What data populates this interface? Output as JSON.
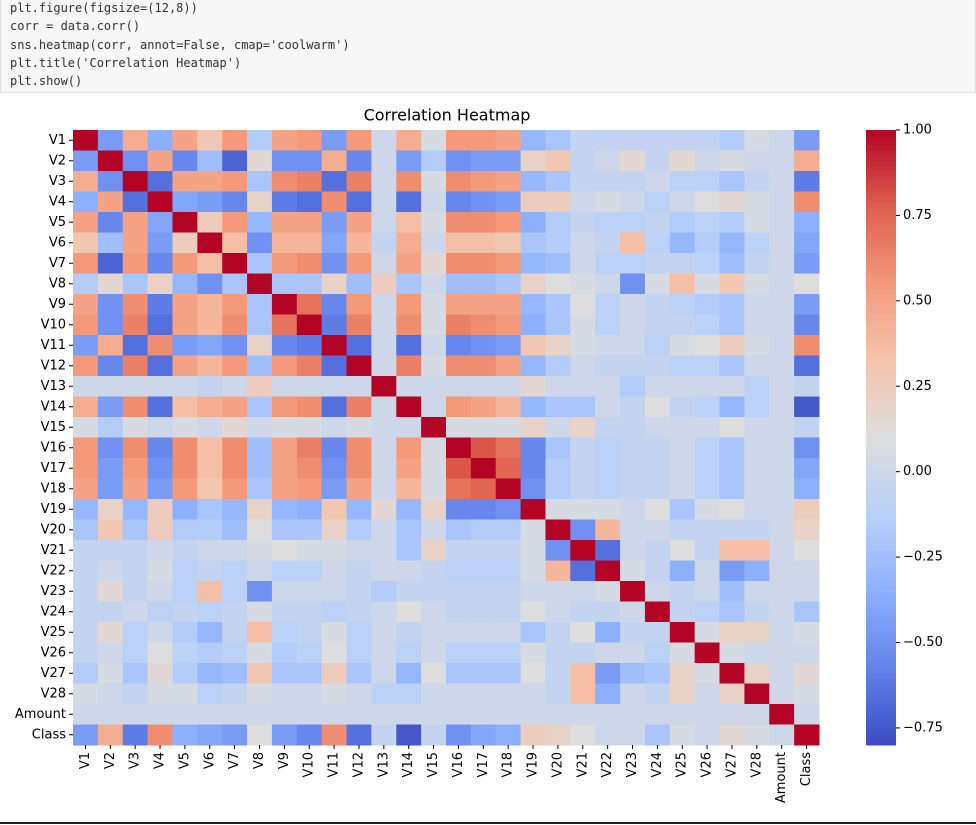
{
  "code": [
    "plt.figure(figsize=(12,8))",
    "corr = data.corr()",
    "sns.heatmap(corr, annot=False, cmap='coolwarm')",
    "plt.title('Correlation Heatmap')",
    "plt.show()"
  ],
  "chart_data": {
    "type": "heatmap",
    "title": "Correlation Heatmap",
    "cmap": "coolwarm",
    "categories": [
      "V1",
      "V2",
      "V3",
      "V4",
      "V5",
      "V6",
      "V7",
      "V8",
      "V9",
      "V10",
      "V11",
      "V12",
      "V13",
      "V14",
      "V15",
      "V16",
      "V17",
      "V18",
      "V19",
      "V20",
      "V21",
      "V22",
      "V23",
      "V24",
      "V25",
      "V26",
      "V27",
      "V28",
      "Amount",
      "Class"
    ],
    "matrix": [
      [
        1,
        -0.45,
        0.45,
        -0.35,
        0.5,
        0.3,
        0.55,
        -0.15,
        0.5,
        0.55,
        -0.45,
        0.55,
        0,
        0.45,
        0.05,
        0.55,
        0.55,
        0.5,
        -0.3,
        -0.2,
        -0.05,
        -0.05,
        -0.05,
        -0.05,
        -0.05,
        -0.05,
        -0.15,
        0.05,
        0,
        -0.45
      ],
      [
        -0.45,
        1,
        -0.5,
        0.5,
        -0.55,
        -0.25,
        -0.7,
        0.15,
        -0.5,
        -0.5,
        0.45,
        -0.55,
        0,
        -0.45,
        -0.15,
        -0.5,
        -0.45,
        -0.45,
        0.2,
        0.3,
        -0.05,
        0,
        0.15,
        -0.05,
        0.15,
        0,
        0.05,
        0,
        0,
        0.45
      ],
      [
        0.45,
        -0.5,
        1,
        -0.65,
        0.5,
        0.5,
        0.55,
        -0.2,
        0.6,
        0.65,
        -0.65,
        0.65,
        0,
        0.6,
        0.05,
        0.6,
        0.55,
        0.5,
        -0.3,
        -0.2,
        -0.05,
        -0.05,
        -0.05,
        0,
        -0.1,
        -0.1,
        -0.2,
        -0.05,
        0,
        -0.6
      ],
      [
        -0.35,
        0.5,
        -0.65,
        1,
        -0.4,
        -0.45,
        -0.55,
        0.2,
        -0.6,
        -0.65,
        0.6,
        -0.65,
        0,
        -0.65,
        0,
        -0.55,
        -0.5,
        -0.45,
        0.25,
        0.25,
        0,
        0.05,
        0,
        -0.1,
        0,
        0.1,
        0.15,
        0.05,
        0,
        0.6
      ],
      [
        0.5,
        -0.55,
        0.5,
        -0.4,
        1,
        0.25,
        0.55,
        -0.3,
        0.5,
        0.5,
        -0.45,
        0.5,
        0,
        0.35,
        0.05,
        0.6,
        0.6,
        0.55,
        -0.35,
        -0.15,
        -0.05,
        -0.1,
        -0.1,
        -0.05,
        -0.15,
        -0.1,
        -0.15,
        0.05,
        0,
        -0.35
      ],
      [
        0.3,
        -0.25,
        0.5,
        -0.45,
        0.25,
        1,
        0.35,
        -0.5,
        0.4,
        0.4,
        -0.4,
        0.4,
        -0.05,
        0.45,
        0,
        0.35,
        0.35,
        0.3,
        -0.2,
        -0.15,
        0,
        -0.05,
        0.35,
        -0.1,
        -0.3,
        -0.15,
        -0.3,
        -0.1,
        0,
        -0.4
      ],
      [
        0.55,
        -0.7,
        0.55,
        -0.55,
        0.55,
        0.35,
        1,
        -0.2,
        0.55,
        0.6,
        -0.5,
        0.55,
        0,
        0.5,
        0.15,
        0.6,
        0.6,
        0.55,
        -0.3,
        -0.25,
        0,
        -0.1,
        -0.1,
        -0.05,
        -0.05,
        -0.1,
        -0.25,
        -0.05,
        0,
        -0.45
      ],
      [
        -0.15,
        0.15,
        -0.2,
        0.2,
        -0.3,
        -0.5,
        -0.2,
        1,
        -0.2,
        -0.2,
        0.2,
        -0.25,
        0.25,
        -0.2,
        0,
        -0.25,
        -0.25,
        -0.2,
        0.2,
        0.1,
        0.05,
        0,
        -0.5,
        0.05,
        0.35,
        0.05,
        0.3,
        0.05,
        0,
        0.1
      ],
      [
        0.5,
        -0.5,
        0.6,
        -0.6,
        0.5,
        0.4,
        0.55,
        -0.2,
        1,
        0.7,
        -0.55,
        0.55,
        0,
        0.55,
        0.05,
        0.5,
        0.5,
        0.5,
        -0.3,
        -0.2,
        0.1,
        -0.1,
        0,
        -0.05,
        -0.1,
        -0.15,
        -0.2,
        0,
        0,
        -0.45
      ],
      [
        0.55,
        -0.5,
        0.65,
        -0.65,
        0.5,
        0.4,
        0.6,
        -0.2,
        0.7,
        1,
        -0.6,
        0.65,
        0,
        0.6,
        0.05,
        0.65,
        0.6,
        0.55,
        -0.35,
        -0.2,
        0.05,
        -0.1,
        0,
        -0.05,
        -0.05,
        -0.1,
        -0.2,
        0,
        0,
        -0.55
      ],
      [
        -0.45,
        0.45,
        -0.65,
        0.6,
        -0.45,
        -0.4,
        -0.5,
        0.2,
        -0.55,
        -0.6,
        1,
        -0.65,
        0,
        -0.65,
        0,
        -0.55,
        -0.5,
        -0.45,
        0.3,
        0.2,
        0.05,
        0,
        0,
        -0.1,
        0.05,
        0.1,
        0.25,
        0.05,
        0,
        0.6
      ],
      [
        0.55,
        -0.55,
        0.65,
        -0.65,
        0.5,
        0.4,
        0.55,
        -0.25,
        0.55,
        0.65,
        -0.65,
        1,
        0,
        0.65,
        0.05,
        0.6,
        0.6,
        0.5,
        -0.3,
        -0.15,
        0,
        -0.05,
        -0.05,
        -0.05,
        -0.1,
        -0.1,
        -0.2,
        0,
        0,
        -0.65
      ],
      [
        0,
        0,
        0,
        0,
        0,
        -0.05,
        0,
        0.25,
        0,
        0,
        0,
        0,
        1,
        0,
        0,
        0,
        0,
        0,
        0.15,
        0,
        0,
        0,
        -0.15,
        0,
        0,
        0,
        0,
        -0.1,
        0,
        -0.05
      ],
      [
        0.45,
        -0.45,
        0.6,
        -0.65,
        0.35,
        0.45,
        0.5,
        -0.2,
        0.55,
        0.6,
        -0.65,
        0.65,
        0,
        1,
        0,
        0.55,
        0.5,
        0.4,
        -0.3,
        -0.2,
        -0.2,
        0,
        -0.05,
        0.1,
        -0.05,
        -0.1,
        -0.3,
        -0.1,
        0,
        -0.75
      ],
      [
        0.05,
        -0.15,
        0.05,
        0,
        0.05,
        0,
        0.15,
        0,
        0.05,
        0.05,
        0,
        0.05,
        0,
        0,
        1,
        0.05,
        0.05,
        0.05,
        0.2,
        0,
        0.2,
        -0.05,
        -0.05,
        0,
        0,
        0,
        0.1,
        0,
        0,
        -0.05
      ],
      [
        0.55,
        -0.5,
        0.6,
        -0.55,
        0.6,
        0.35,
        0.6,
        -0.25,
        0.5,
        0.65,
        -0.55,
        0.6,
        0,
        0.55,
        0.05,
        1,
        0.8,
        0.7,
        -0.55,
        -0.2,
        -0.05,
        -0.1,
        -0.05,
        -0.05,
        0,
        -0.1,
        -0.2,
        0,
        0,
        -0.5
      ],
      [
        0.55,
        -0.45,
        0.55,
        -0.5,
        0.6,
        0.35,
        0.6,
        -0.25,
        0.5,
        0.6,
        -0.5,
        0.6,
        0,
        0.5,
        0.05,
        0.8,
        1,
        0.75,
        -0.55,
        -0.15,
        -0.05,
        -0.1,
        -0.05,
        -0.05,
        0,
        -0.1,
        -0.2,
        0,
        0,
        -0.4
      ],
      [
        0.5,
        -0.45,
        0.5,
        -0.45,
        0.55,
        0.3,
        0.55,
        -0.2,
        0.5,
        0.55,
        -0.45,
        0.5,
        0,
        0.4,
        0.05,
        0.7,
        0.75,
        1,
        -0.5,
        -0.15,
        -0.05,
        -0.1,
        -0.05,
        -0.05,
        0,
        -0.1,
        -0.2,
        0,
        0,
        -0.35
      ],
      [
        -0.3,
        0.2,
        -0.3,
        0.25,
        -0.35,
        -0.2,
        -0.3,
        0.2,
        -0.3,
        -0.35,
        0.3,
        -0.3,
        0.15,
        -0.3,
        0.2,
        -0.55,
        -0.55,
        -0.5,
        1,
        0.05,
        0.05,
        0.05,
        0,
        0.1,
        -0.2,
        0.05,
        0.1,
        0,
        0,
        0.25
      ],
      [
        -0.2,
        0.3,
        -0.2,
        0.25,
        -0.15,
        -0.15,
        -0.25,
        0.1,
        -0.2,
        -0.2,
        0.2,
        -0.15,
        0,
        -0.2,
        0,
        -0.2,
        -0.15,
        -0.15,
        0.05,
        1,
        -0.5,
        0.4,
        0,
        0,
        -0.05,
        -0.05,
        -0.05,
        -0.05,
        0,
        0.2
      ],
      [
        -0.05,
        -0.05,
        -0.05,
        0,
        -0.05,
        0,
        0,
        0.05,
        0.1,
        0.05,
        0.05,
        0,
        0,
        -0.2,
        0.2,
        -0.05,
        -0.05,
        -0.05,
        0.05,
        -0.5,
        1,
        -0.65,
        0,
        -0.05,
        0.1,
        -0.05,
        0.35,
        0.35,
        0,
        0.1
      ],
      [
        -0.05,
        0,
        -0.05,
        0.05,
        -0.1,
        -0.05,
        -0.1,
        0,
        -0.1,
        -0.1,
        0,
        -0.05,
        0,
        0,
        -0.05,
        -0.1,
        -0.1,
        -0.1,
        0.05,
        0.4,
        -0.65,
        1,
        0.05,
        -0.05,
        -0.35,
        0,
        -0.45,
        -0.35,
        0,
        0
      ],
      [
        -0.05,
        0.15,
        -0.05,
        0,
        -0.1,
        0.35,
        -0.1,
        -0.5,
        0,
        0,
        0,
        -0.05,
        -0.15,
        -0.05,
        -0.05,
        -0.05,
        -0.05,
        -0.05,
        0,
        0,
        0,
        0.05,
        1,
        0,
        -0.05,
        0,
        -0.25,
        0,
        0,
        0
      ],
      [
        -0.05,
        -0.05,
        0,
        -0.1,
        -0.05,
        -0.1,
        -0.05,
        0.05,
        -0.05,
        -0.05,
        -0.1,
        -0.05,
        0,
        0.1,
        0,
        -0.05,
        -0.05,
        -0.05,
        0.1,
        0,
        -0.05,
        -0.05,
        0,
        1,
        -0.05,
        -0.1,
        -0.2,
        -0.05,
        0,
        -0.2
      ],
      [
        -0.05,
        0.15,
        -0.1,
        0,
        -0.15,
        -0.3,
        -0.05,
        0.35,
        -0.1,
        -0.05,
        0.05,
        -0.1,
        0,
        -0.05,
        0,
        0,
        0,
        0,
        -0.2,
        -0.05,
        0.1,
        -0.35,
        -0.05,
        -0.05,
        1,
        0.05,
        0.2,
        0.2,
        0,
        0.05
      ],
      [
        -0.05,
        0,
        -0.1,
        0.1,
        -0.1,
        -0.15,
        -0.1,
        0.05,
        -0.15,
        -0.1,
        0.1,
        -0.1,
        0,
        -0.1,
        0,
        -0.1,
        -0.1,
        -0.1,
        0.05,
        -0.05,
        -0.05,
        0,
        0,
        -0.1,
        0.05,
        1,
        0.05,
        0,
        0,
        0
      ],
      [
        -0.15,
        0.05,
        -0.2,
        0.15,
        -0.15,
        -0.3,
        -0.25,
        0.3,
        -0.2,
        -0.2,
        0.25,
        -0.2,
        0,
        -0.3,
        0.1,
        -0.2,
        -0.2,
        -0.2,
        0.1,
        -0.05,
        0.35,
        -0.45,
        -0.25,
        -0.2,
        0.2,
        0.05,
        1,
        0.2,
        0,
        0.15
      ],
      [
        0.05,
        0,
        -0.05,
        0.05,
        0.05,
        -0.1,
        -0.05,
        0.05,
        0,
        0,
        0.05,
        0,
        -0.1,
        -0.1,
        0,
        0,
        0,
        0,
        0,
        -0.05,
        0.35,
        -0.35,
        0,
        -0.05,
        0.2,
        0,
        0.2,
        1,
        0,
        0.05
      ],
      [
        0,
        0,
        0,
        0,
        0,
        0,
        0,
        0,
        0,
        0,
        0,
        0,
        0,
        0,
        0,
        0,
        0,
        0,
        0,
        0,
        0,
        0,
        0,
        0,
        0,
        0,
        0,
        0,
        1,
        0
      ],
      [
        -0.45,
        0.45,
        -0.6,
        0.6,
        -0.35,
        -0.4,
        -0.45,
        0.1,
        -0.45,
        -0.55,
        0.6,
        -0.65,
        -0.05,
        -0.75,
        -0.05,
        -0.5,
        -0.4,
        -0.35,
        0.25,
        0.2,
        0.1,
        0,
        0,
        -0.2,
        0.05,
        0,
        0.15,
        0.05,
        0,
        1
      ]
    ],
    "clim": [
      -0.8,
      1.0
    ],
    "cticks": [
      {
        "value": 1.0,
        "label": "1.00"
      },
      {
        "value": 0.75,
        "label": "0.75"
      },
      {
        "value": 0.5,
        "label": "0.50"
      },
      {
        "value": 0.25,
        "label": "0.25"
      },
      {
        "value": 0.0,
        "label": "0.00"
      },
      {
        "value": -0.25,
        "label": "−0.25"
      },
      {
        "value": -0.5,
        "label": "−0.50"
      },
      {
        "value": -0.75,
        "label": "−0.75"
      }
    ]
  }
}
